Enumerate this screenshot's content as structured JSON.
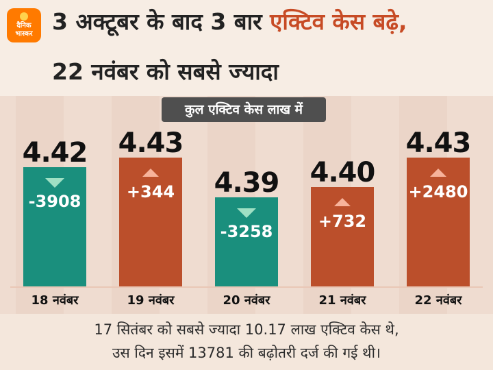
{
  "brand": {
    "line1": "दैनिक",
    "line2": "भास्कर"
  },
  "header": {
    "title_part1": "3 अक्टूबर के बाद 3 बार ",
    "title_highlight": "एक्टिव केस बढ़े,",
    "title_line2": "22 नवंबर को सबसे ज्यादा"
  },
  "chart_data": {
    "type": "bar",
    "unit_label": "कुल एक्टिव केस लाख में",
    "categories": [
      "18 नवंबर",
      "19 नवंबर",
      "20 नवंबर",
      "21 नवंबर",
      "22 नवंबर"
    ],
    "values": [
      4.42,
      4.43,
      4.39,
      4.4,
      4.43
    ],
    "value_labels": [
      "4.42",
      "4.43",
      "4.39",
      "4.40",
      "4.43"
    ],
    "changes": [
      -3908,
      344,
      -3258,
      732,
      2480
    ],
    "change_labels": [
      "-3908",
      "+344",
      "-3258",
      "+732",
      "+2480"
    ],
    "ylim": [
      4.3,
      4.45
    ],
    "colors": {
      "increase": "#bb4f2b",
      "decrease": "#1a8f7d",
      "arrow_up": "#f7b39b",
      "arrow_down": "#9fe0c4"
    }
  },
  "footer": {
    "line1": "17 सितंबर को सबसे ज्यादा 10.17 लाख एक्टिव केस थे,",
    "line2": "उस दिन इसमें 13781 की बढ़ोतरी दर्ज की गई थी।"
  }
}
